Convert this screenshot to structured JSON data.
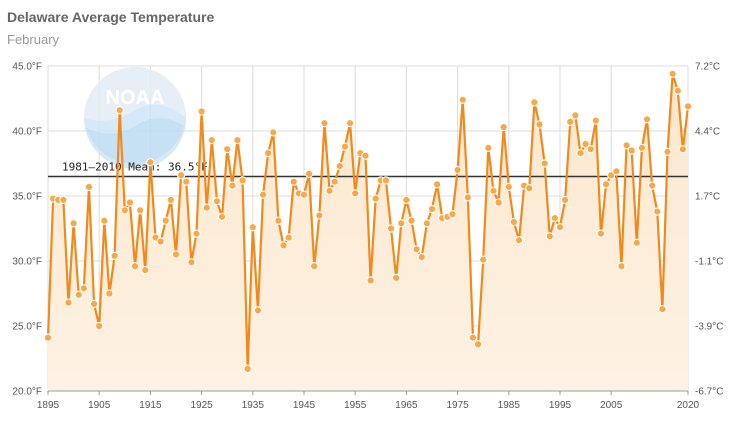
{
  "title": "Delaware Average Temperature",
  "subtitle": "February",
  "logo_text": "NOAA",
  "colors": {
    "line": "#f08a1c",
    "marker_fill": "#f7a94a",
    "area_top": "#fde7cd",
    "area_bottom": "#fdf2e4",
    "mean_line": "#333333",
    "grid": "#dddddd"
  },
  "chart_data": {
    "type": "line",
    "title": "Delaware Average Temperature",
    "subtitle": "February",
    "xlim": [
      1895,
      2020
    ],
    "ylim": [
      20,
      45
    ],
    "y2lim": [
      -6.7,
      7.2
    ],
    "grid": true,
    "x_ticks": [
      "1895",
      "1905",
      "1915",
      "1925",
      "1935",
      "1945",
      "1955",
      "1965",
      "1975",
      "1985",
      "1995",
      "2005",
      "2020"
    ],
    "y_ticks": [
      "45.0°F",
      "40.0°F",
      "35.0°F",
      "30.0°F",
      "25.0°F",
      "20.0°F"
    ],
    "y2_ticks": [
      "7.2°C",
      "4.4°C",
      "1.7°C",
      "-1.1°C",
      "-3.9°C",
      "-6.7°C"
    ],
    "reference_line": {
      "label": "1981–2010 Mean: 36.5°F",
      "value": 36.5
    },
    "series": [
      {
        "x": [
          1895,
          1896,
          1897,
          1898,
          1899,
          1900,
          1901,
          1902,
          1903,
          1904,
          1905,
          1906,
          1907,
          1908,
          1909,
          1910,
          1911,
          1912,
          1913,
          1914,
          1915,
          1916,
          1917,
          1918,
          1919,
          1920,
          1921,
          1922,
          1923,
          1924,
          1925,
          1926,
          1927,
          1928,
          1929,
          1930,
          1931,
          1932,
          1933,
          1934,
          1935,
          1936,
          1937,
          1938,
          1939,
          1940,
          1941,
          1942,
          1943,
          1944,
          1945,
          1946,
          1947,
          1948,
          1949,
          1950,
          1951,
          1952,
          1953,
          1954,
          1955,
          1956,
          1957,
          1958,
          1959,
          1960,
          1961,
          1962,
          1963,
          1964,
          1965,
          1966,
          1967,
          1968,
          1969,
          1970,
          1971,
          1972,
          1973,
          1974,
          1975,
          1976,
          1977,
          1978,
          1979,
          1980,
          1981,
          1982,
          1983,
          1984,
          1985,
          1986,
          1987,
          1988,
          1989,
          1990,
          1991,
          1992,
          1993,
          1994,
          1995,
          1996,
          1997,
          1998,
          1999,
          2000,
          2001,
          2002,
          2003,
          2004,
          2005,
          2006,
          2007,
          2008,
          2009,
          2010,
          2011,
          2012,
          2013,
          2014,
          2015,
          2016,
          2017,
          2018,
          2019,
          2020
        ],
        "values": [
          24.1,
          34.8,
          34.7,
          34.7,
          26.8,
          32.9,
          27.4,
          27.9,
          35.7,
          26.7,
          25.0,
          33.1,
          27.5,
          30.4,
          41.6,
          33.9,
          34.5,
          29.6,
          33.9,
          29.3,
          37.6,
          31.8,
          31.5,
          33.1,
          34.7,
          30.5,
          36.6,
          36.1,
          29.9,
          32.1,
          41.5,
          34.1,
          39.3,
          34.6,
          33.4,
          38.6,
          35.8,
          39.3,
          36.2,
          21.7,
          32.6,
          26.2,
          35.1,
          38.3,
          39.9,
          33.1,
          31.2,
          31.8,
          36.1,
          35.2,
          35.1,
          36.7,
          29.6,
          33.5,
          40.6,
          35.4,
          36.1,
          37.3,
          38.8,
          40.6,
          35.2,
          38.3,
          38.1,
          28.5,
          34.8,
          36.2,
          36.2,
          32.5,
          28.7,
          32.9,
          34.7,
          33.1,
          30.9,
          30.3,
          32.9,
          34.0,
          35.9,
          33.3,
          33.4,
          33.6,
          37.0,
          42.4,
          34.9,
          24.1,
          23.6,
          30.1,
          38.7,
          35.4,
          34.5,
          40.3,
          35.7,
          33.0,
          31.6,
          35.8,
          35.6,
          42.2,
          40.5,
          37.5,
          31.9,
          33.3,
          32.6,
          34.7,
          40.7,
          41.2,
          38.3,
          39.0,
          38.6,
          40.8,
          32.1,
          35.9,
          36.6,
          36.9,
          29.6,
          38.9,
          38.5,
          31.4,
          38.7,
          40.9,
          35.8,
          33.8,
          26.3,
          38.4,
          44.4,
          43.1,
          38.6,
          41.9
        ]
      }
    ]
  }
}
